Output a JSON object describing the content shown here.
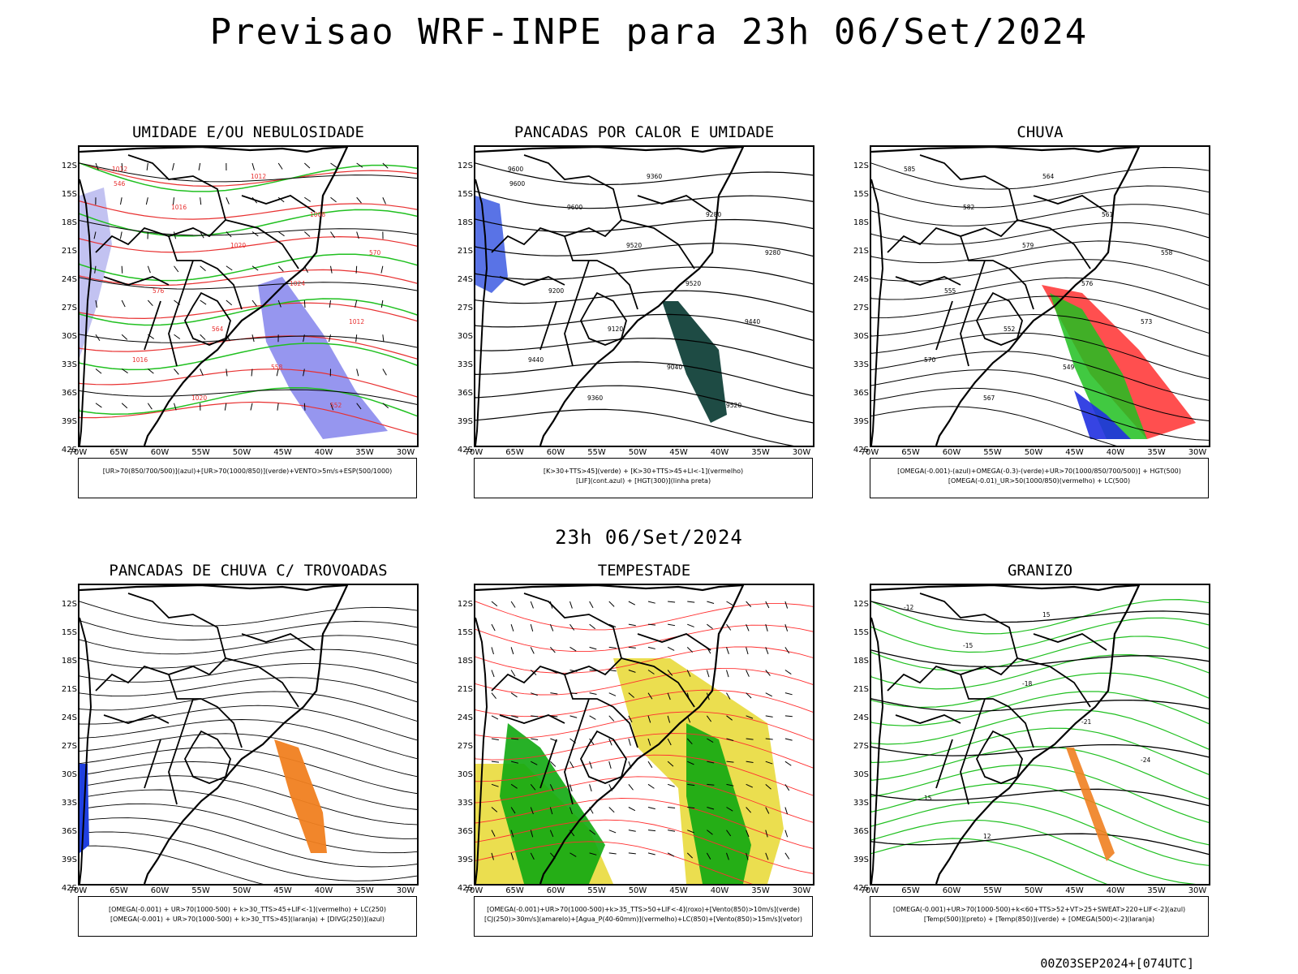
{
  "title": "Previsao WRF-INPE  para 23h 06/Set/2024",
  "subtitle": "23h 06/Set/2024",
  "footer": "00Z03SEP2024+[074UTC]",
  "lat_labels": [
    "12S",
    "15S",
    "18S",
    "21S",
    "24S",
    "27S",
    "30S",
    "33S",
    "36S",
    "39S",
    "42S"
  ],
  "lon_labels": [
    "70W",
    "65W",
    "60W",
    "55W",
    "50W",
    "45W",
    "40W",
    "35W",
    "30W"
  ],
  "panels": [
    {
      "id": "umidade",
      "title": "UMIDADE E/OU NEBULOSIDADE",
      "legend": [
        "[UR>70(850/700/500)](azul)+[UR>70(1000/850)](verde)+VENTO>5m/s+ESP(500/1000)"
      ],
      "contour_labels": [
        "1012",
        "1016",
        "1020",
        "1024",
        "1012",
        "1016",
        "1020",
        "1012",
        "1008",
        "570",
        "576",
        "564",
        "558",
        "552",
        "546"
      ]
    },
    {
      "id": "pancadas-calor",
      "title": "PANCADAS POR CALOR E UMIDADE",
      "legend": [
        "[K>30+TTS>45](verde) + [K>30+TTS>45+LI<-1](vermelho)",
        "[LIF](cont.azul) + [HGT(300)](linha preta)"
      ],
      "contour_labels": [
        "9600",
        "9600",
        "9520",
        "9520",
        "9440",
        "9440",
        "9360",
        "9360",
        "9280",
        "9280",
        "9200",
        "9120",
        "9040",
        "9520",
        "9600"
      ]
    },
    {
      "id": "chuva",
      "title": "CHUVA",
      "legend": [
        "[OMEGA(-0.001)-(azul)+OMEGA(-0.3)-(verde)+UR>70(1000/850/700/500)] + HGT(500)",
        "[OMEGA(-0.01)_UR>50(1000/850)(vermelho) + LC(500)"
      ],
      "contour_labels": [
        "585",
        "582",
        "579",
        "576",
        "573",
        "570",
        "567",
        "564",
        "561",
        "558",
        "555",
        "552",
        "549"
      ]
    },
    {
      "id": "trovoadas",
      "title": "PANCADAS DE CHUVA C/ TROVOADAS",
      "legend": [
        "[OMEGA(-0.001) + UR>70(1000-500) + k>30_TTS>45+LIF<-1](vermelho) + LC(250)",
        "[OMEGA(-0.001) + UR>70(1000-500) + k>30_TTS>45](laranja) + [DIVG(250)](azul)"
      ],
      "contour_labels": []
    },
    {
      "id": "tempestade",
      "title": "TEMPESTADE",
      "legend": [
        "[OMEGA(-0.001)+UR>70(1000-500)+k>35_TTS>50+LIF<-4](roxo)+[Vento(850)>10m/s](verde)",
        "[CJ(250)>30m/s](amarelo)+[Agua_P(40-60mm)](vermelho)+LC(850)+[Vento(850)>15m/s](vetor)"
      ],
      "contour_labels": []
    },
    {
      "id": "granizo",
      "title": "GRANIZO",
      "legend": [
        "[OMEGA(-0.001)+UR>70(1000-500)+k<60+TTS>52+VT>25+SWEAT>220+LIF<-2](azul)",
        "[Temp(500)](preto) + [Temp(850)](verde) + [OMEGA(500)<-2](laranja)"
      ],
      "contour_labels": [
        "-12",
        "-15",
        "-18",
        "-21",
        "-24",
        "15",
        "12",
        "15"
      ]
    }
  ]
}
